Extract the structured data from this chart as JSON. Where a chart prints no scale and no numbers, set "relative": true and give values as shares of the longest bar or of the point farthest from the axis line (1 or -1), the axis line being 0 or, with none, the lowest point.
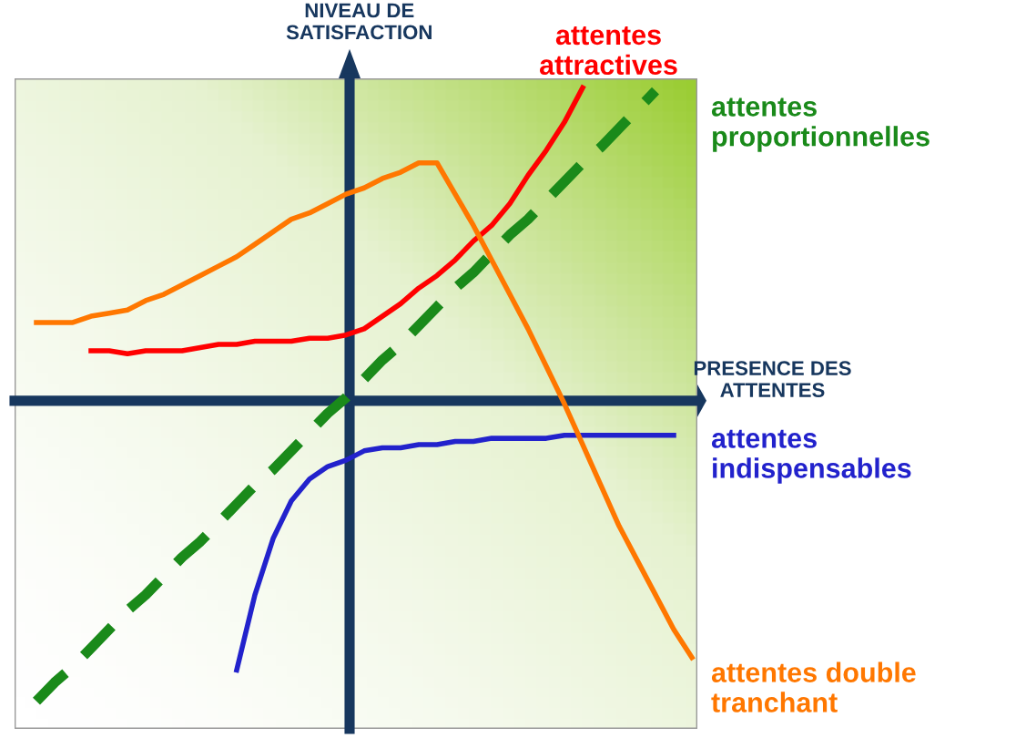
{
  "chart_data": {
    "type": "line",
    "relative": true,
    "xlabel": "PRESENCE DES\nATTENTES",
    "ylabel": "NIVEAU DE\nSATISFACTION",
    "legend": false,
    "marker": "none",
    "categories": [
      null,
      null,
      null,
      null,
      null,
      null,
      null,
      null,
      null,
      null,
      null,
      null,
      null,
      null,
      null,
      null,
      null,
      null,
      null,
      null,
      null,
      null,
      null,
      null,
      null,
      null,
      null,
      null,
      null,
      null,
      null,
      null,
      null,
      null,
      null,
      null,
      null,
      null
    ],
    "series": [
      {
        "name": "attentes\nattractives",
        "color": "#ff0000",
        "line_style": "solid",
        "values": [
          null,
          null,
          null,
          null,
          0.16,
          0.16,
          0.15,
          0.16,
          0.16,
          0.16,
          0.17,
          0.18,
          0.18,
          0.19,
          0.19,
          0.19,
          0.2,
          0.2,
          0.21,
          0.23,
          0.27,
          0.31,
          0.36,
          0.4,
          0.45,
          0.51,
          0.56,
          0.63,
          0.72,
          0.8,
          0.89,
          1.0,
          null,
          null,
          null,
          null,
          null,
          null
        ]
      },
      {
        "name": "attentes\nproportionnelles",
        "color": "#1a8a1a",
        "line_style": "dashed",
        "values": [
          null,
          -0.96,
          -0.9,
          -0.85,
          -0.79,
          -0.73,
          -0.67,
          -0.62,
          -0.56,
          -0.5,
          -0.45,
          -0.39,
          -0.33,
          -0.27,
          -0.22,
          -0.16,
          -0.1,
          -0.04,
          0.01,
          0.07,
          0.13,
          0.18,
          0.24,
          0.3,
          0.36,
          0.41,
          0.47,
          0.53,
          0.58,
          0.64,
          0.7,
          0.76,
          0.81,
          0.87,
          0.93,
          0.99,
          null,
          null
        ]
      },
      {
        "name": "attentes\nindispensables",
        "color": "#2222cc",
        "line_style": "solid",
        "values": [
          null,
          null,
          null,
          null,
          null,
          null,
          null,
          null,
          null,
          null,
          null,
          null,
          -0.86,
          -0.62,
          -0.44,
          -0.32,
          -0.25,
          -0.21,
          -0.19,
          -0.16,
          -0.15,
          -0.15,
          -0.14,
          -0.14,
          -0.13,
          -0.13,
          -0.12,
          -0.12,
          -0.12,
          -0.12,
          -0.11,
          -0.11,
          -0.11,
          -0.11,
          -0.11,
          -0.11,
          -0.11,
          null
        ]
      },
      {
        "name": "attentes double\ntranchant",
        "color": "#ff7700",
        "line_style": "solid",
        "values": [
          null,
          0.25,
          0.25,
          0.25,
          0.27,
          0.28,
          0.29,
          0.32,
          0.34,
          0.37,
          0.4,
          0.43,
          0.46,
          0.5,
          0.54,
          0.58,
          0.6,
          0.63,
          0.66,
          0.68,
          0.71,
          0.73,
          0.76,
          0.76,
          0.66,
          0.56,
          0.45,
          0.34,
          0.23,
          0.11,
          -0.01,
          -0.14,
          -0.27,
          -0.4,
          -0.51,
          -0.62,
          -0.73,
          -0.82
        ]
      }
    ]
  }
}
